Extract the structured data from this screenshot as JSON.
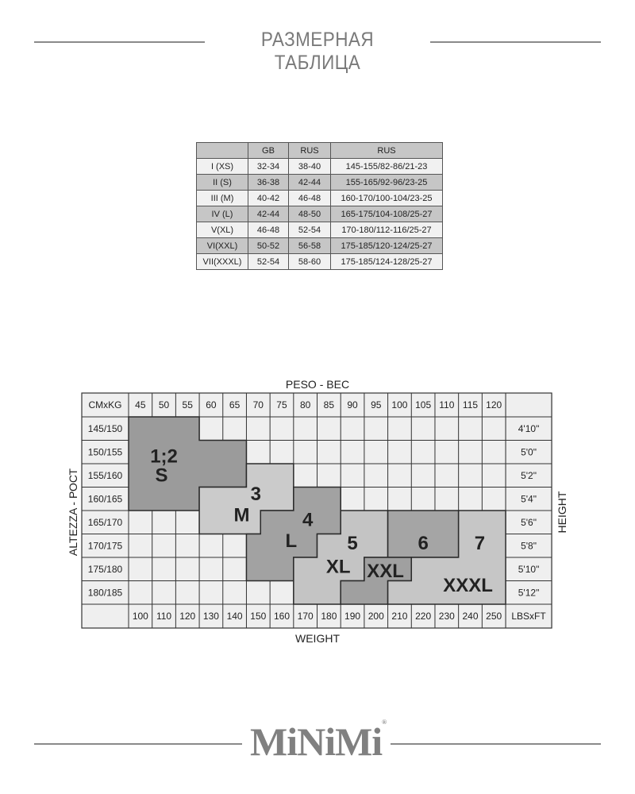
{
  "header": {
    "title": "РАЗМЕРНАЯ ТАБЛИЦА"
  },
  "size_table": {
    "columns": [
      "",
      "GB",
      "RUS",
      "RUS"
    ],
    "rows": [
      [
        "I (XS)",
        "32-34",
        "38-40",
        "145-155/82-86/21-23"
      ],
      [
        "II (S)",
        "36-38",
        "42-44",
        "155-165/92-96/23-25"
      ],
      [
        "III (M)",
        "40-42",
        "46-48",
        "160-170/100-104/23-25"
      ],
      [
        "IV (L)",
        "42-44",
        "48-50",
        "165-175/104-108/25-27"
      ],
      [
        "V(XL)",
        "46-48",
        "52-54",
        "170-180/112-116/25-27"
      ],
      [
        "VI(XXL)",
        "50-52",
        "56-58",
        "175-185/120-124/25-27"
      ],
      [
        "VII(XXXL)",
        "52-54",
        "58-60",
        "175-185/124-128/25-27"
      ]
    ]
  },
  "chart_data": {
    "type": "table",
    "top_label": "PESO - ВЕС",
    "bottom_label": "WEIGHT",
    "left_label": "ALTEZZA - РОСТ",
    "right_label": "HEIGHT",
    "corner_top": "CMxKG",
    "corner_bottom": "LBSxFT",
    "weights_kg": [
      "45",
      "50",
      "55",
      "60",
      "65",
      "70",
      "75",
      "80",
      "85",
      "90",
      "95",
      "100",
      "105",
      "110",
      "115",
      "120"
    ],
    "weights_lbs": [
      "100",
      "110",
      "120",
      "130",
      "140",
      "150",
      "160",
      "170",
      "180",
      "190",
      "200",
      "210",
      "220",
      "230",
      "240",
      "250"
    ],
    "heights_cm": [
      "145/150",
      "150/155",
      "155/160",
      "160/165",
      "165/170",
      "170/175",
      "175/180",
      "180/185"
    ],
    "heights_ft": [
      "4'10\"",
      "5'0\"",
      "5'2\"",
      "5'4\"",
      "5'6\"",
      "5'8\"",
      "5'10\"",
      "5'12\""
    ],
    "zones": [
      {
        "id": "s",
        "number": "1;2",
        "size": "S",
        "color": "#9b9b9b"
      },
      {
        "id": "m",
        "number": "3",
        "size": "M",
        "color": "#cbcbcb"
      },
      {
        "id": "l",
        "number": "4",
        "size": "L",
        "color": "#a2a2a2"
      },
      {
        "id": "xl",
        "number": "5",
        "size": "XL",
        "color": "#c4c4c4"
      },
      {
        "id": "6",
        "number": "6",
        "size": "",
        "color": "#a5a5a5"
      },
      {
        "id": "xxl",
        "number": "",
        "size": "XXL",
        "color": "#a0a0a0"
      },
      {
        "id": "7",
        "number": "7",
        "size": "XXXL",
        "color": "#c6c6c6"
      }
    ],
    "cell_color": "#efefef",
    "grid_color": "#333333"
  },
  "footer": {
    "logo": "MiNiMi",
    "registered": "®"
  }
}
